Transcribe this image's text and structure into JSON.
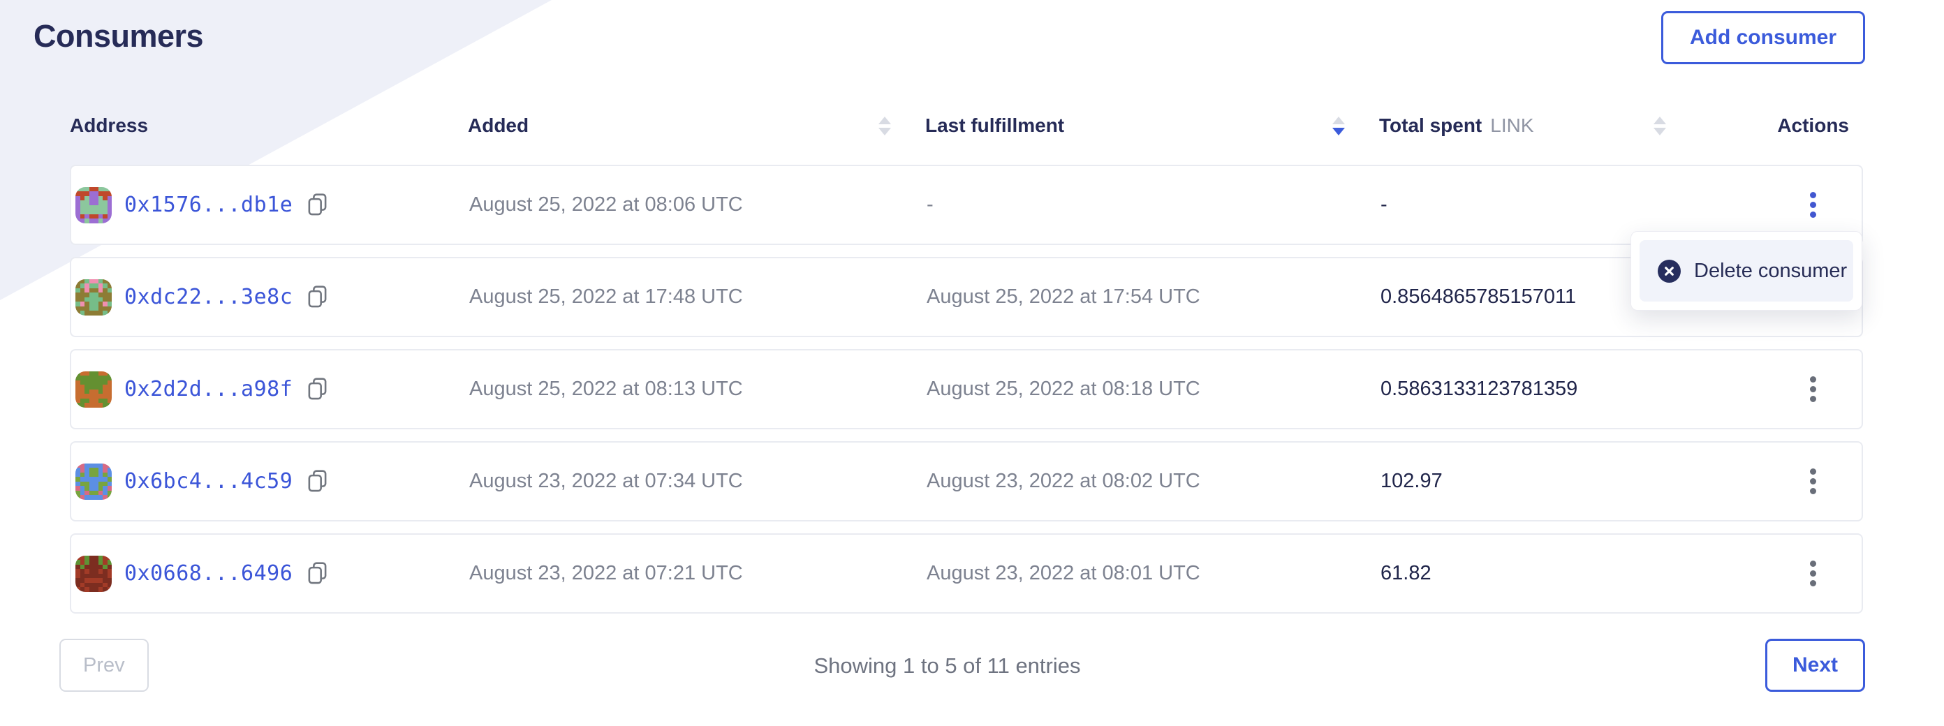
{
  "page_title": "Consumers",
  "accent_color": "#3b5bdb",
  "header": {
    "add_button_label": "Add consumer"
  },
  "table": {
    "columns": {
      "address": "Address",
      "added": "Added",
      "last_fulfillment": "Last fulfillment",
      "total_spent": "Total spent",
      "total_spent_unit": "LINK",
      "actions": "Actions"
    },
    "sort": {
      "added": "none",
      "last_fulfillment": "desc",
      "total_spent": "none"
    },
    "rows": [
      {
        "address": "0x1576...db1e",
        "added": "August 25, 2022 at 08:06 UTC",
        "last_fulfillment": "-",
        "total_spent": "-",
        "menu_open": true,
        "avatar": {
          "bg": "#8cc79d",
          "color": "#9c6ed3",
          "spot": "#c0482b"
        }
      },
      {
        "address": "0xdc22...3e8c",
        "added": "August 25, 2022 at 17:48 UTC",
        "last_fulfillment": "August 25, 2022 at 17:54 UTC",
        "total_spent": "0.8564865785157011",
        "menu_open": false,
        "avatar": {
          "bg": "#76bd88",
          "color": "#8d7c35",
          "spot": "#f08fb1"
        }
      },
      {
        "address": "0x2d2d...a98f",
        "added": "August 25, 2022 at 08:13 UTC",
        "last_fulfillment": "August 25, 2022 at 08:18 UTC",
        "total_spent": "0.5863133123781359",
        "menu_open": false,
        "avatar": {
          "bg": "#c76d30",
          "color": "#649031",
          "spot": "#e9d054"
        }
      },
      {
        "address": "0x6bc4...4c59",
        "added": "August 23, 2022 at 07:34 UTC",
        "last_fulfillment": "August 23, 2022 at 08:02 UTC",
        "total_spent": "102.97",
        "menu_open": false,
        "avatar": {
          "bg": "#5c8fe4",
          "color": "#78a43e",
          "spot": "#d76a85"
        }
      },
      {
        "address": "0x0668...6496",
        "added": "August 23, 2022 at 07:21 UTC",
        "last_fulfillment": "August 23, 2022 at 08:01 UTC",
        "total_spent": "61.82",
        "menu_open": false,
        "avatar": {
          "bg": "#a23b27",
          "color": "#7c2d20",
          "spot": "#5f9335"
        }
      }
    ]
  },
  "context_menu": {
    "items": [
      {
        "label": "Delete consumer",
        "icon": "circle-x-icon"
      }
    ]
  },
  "pagination": {
    "prev_label": "Prev",
    "next_label": "Next",
    "status": "Showing 1 to 5 of 11 entries",
    "prev_disabled": true
  }
}
